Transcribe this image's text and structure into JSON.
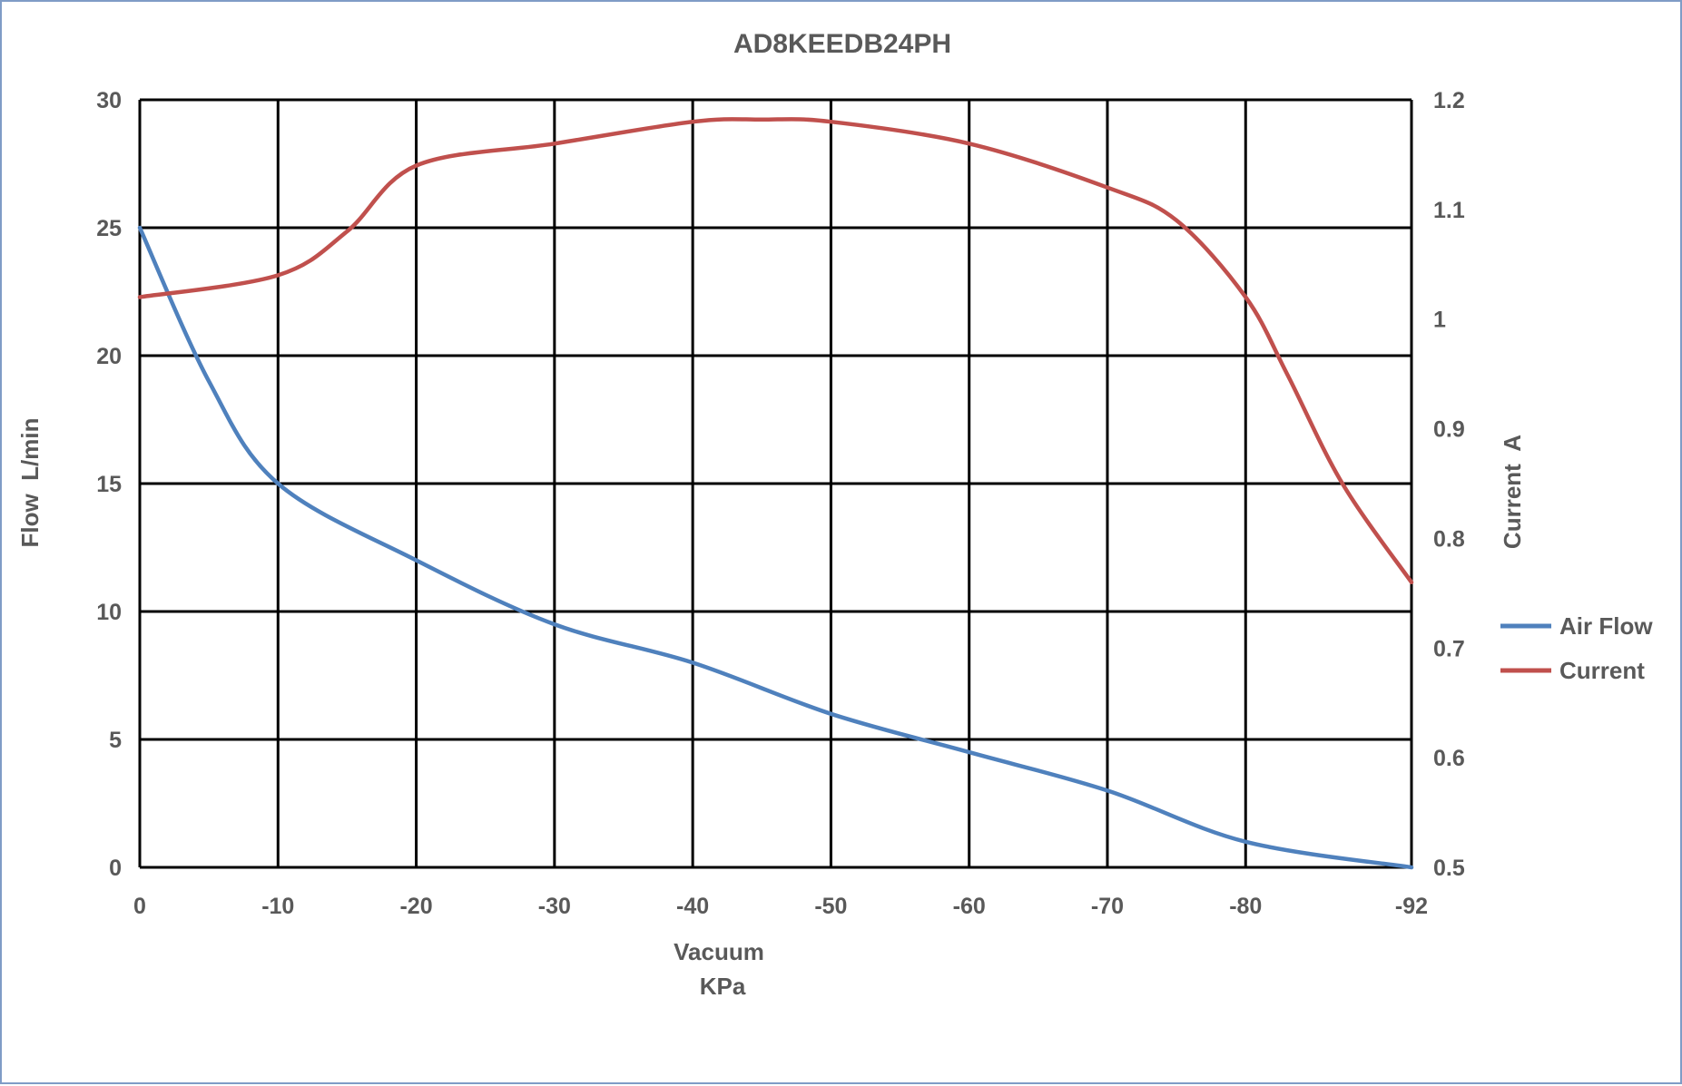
{
  "chart_data": {
    "type": "line",
    "title": "AD8KEEDB24PH",
    "xlabel": [
      "Vacuum",
      "KPa"
    ],
    "ylabel_left": "Flow  L/min",
    "ylabel_right": "Current  A",
    "x_ticks": [
      "0",
      "-10",
      "-20",
      "-30",
      "-40",
      "-50",
      "-60",
      "-70",
      "-80",
      "-92"
    ],
    "y_left_ticks": [
      "0",
      "5",
      "10",
      "15",
      "20",
      "25",
      "30"
    ],
    "y_right_ticks": [
      "0.5",
      "0.6",
      "0.7",
      "0.8",
      "0.9",
      "1",
      "1.1",
      "1.2"
    ],
    "y_left_range": [
      0,
      30
    ],
    "y_right_range": [
      0.5,
      1.2
    ],
    "grid": true,
    "legend_position": "right",
    "series": [
      {
        "name": "Air Flow",
        "axis": "left",
        "color": "#4f81bd",
        "x": [
          0,
          -5,
          -10,
          -20,
          -30,
          -40,
          -50,
          -60,
          -70,
          -80,
          -92
        ],
        "values": [
          25,
          19,
          15,
          12,
          9.5,
          8,
          6,
          4.5,
          3,
          1,
          0
        ]
      },
      {
        "name": "Current",
        "axis": "right",
        "color": "#c0504d",
        "x": [
          0,
          -10,
          -15,
          -20,
          -30,
          -40,
          -45,
          -50,
          -60,
          -70,
          -75,
          -80,
          -83,
          -87,
          -92
        ],
        "values": [
          1.02,
          1.04,
          1.08,
          1.14,
          1.16,
          1.18,
          1.182,
          1.18,
          1.16,
          1.12,
          1.09,
          1.02,
          0.95,
          0.85,
          0.76
        ]
      }
    ]
  }
}
